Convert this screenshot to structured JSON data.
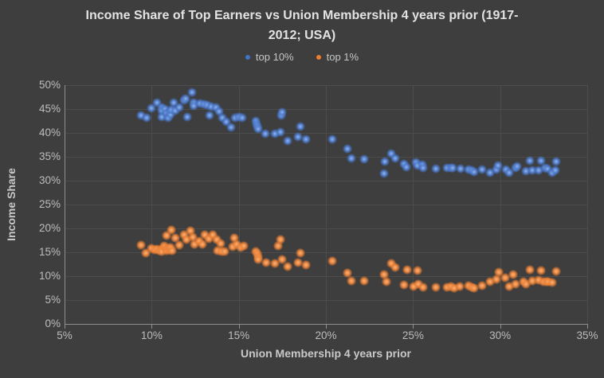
{
  "title": {
    "lines": [
      "Income Share of Top Earners vs Union Membership 4 years prior (1917-",
      "2012; USA)"
    ]
  },
  "legend": {
    "items": [
      {
        "label": "top 10%",
        "color": "#4472c4"
      },
      {
        "label": "top 1%",
        "color": "#ed7d31"
      }
    ]
  },
  "axes": {
    "x": {
      "title": "Union Membership 4 years prior",
      "min": 5,
      "max": 35,
      "tick_values": [
        5,
        10,
        15,
        20,
        25,
        30,
        35
      ],
      "ticks": [
        "5%",
        "10%",
        "15%",
        "20%",
        "25%",
        "30%",
        "35%"
      ]
    },
    "y": {
      "title": "Income Share",
      "min": 0,
      "max": 50,
      "tick_values": [
        0,
        5,
        10,
        15,
        20,
        25,
        30,
        35,
        40,
        45,
        50
      ],
      "ticks": [
        "0%",
        "5%",
        "10%",
        "15%",
        "20%",
        "25%",
        "30%",
        "35%",
        "40%",
        "45%",
        "50%"
      ]
    }
  },
  "chart_data": {
    "type": "scatter",
    "title": "Income Share of Top Earners vs Union Membership 4 years prior (1917-2012; USA)",
    "xlabel": "Union Membership 4 years prior",
    "ylabel": "Income Share",
    "xlim": [
      5,
      35
    ],
    "ylim": [
      0,
      50
    ],
    "x_unit": "%",
    "y_unit": "%",
    "grid": true,
    "legend_position": "top",
    "series": [
      {
        "name": "top 10%",
        "color": "#4472c4",
        "points": [
          [
            9.4,
            43.6
          ],
          [
            9.7,
            43.1
          ],
          [
            10.0,
            45.2
          ],
          [
            10.32,
            46.4
          ],
          [
            10.56,
            45.4
          ],
          [
            10.6,
            44.6
          ],
          [
            10.56,
            43.4
          ],
          [
            10.78,
            45.0
          ],
          [
            10.85,
            44.1
          ],
          [
            10.93,
            43.2
          ],
          [
            11.02,
            44.3
          ],
          [
            11.08,
            43.8
          ],
          [
            11.14,
            44.9
          ],
          [
            11.28,
            46.4
          ],
          [
            11.36,
            44.6
          ],
          [
            11.58,
            45.3
          ],
          [
            11.86,
            46.9
          ],
          [
            11.94,
            47.2
          ],
          [
            12.04,
            43.3
          ],
          [
            12.32,
            48.5
          ],
          [
            12.39,
            46.3
          ],
          [
            12.42,
            45.6
          ],
          [
            12.76,
            46.2
          ],
          [
            13.0,
            46.0
          ],
          [
            13.2,
            45.8
          ],
          [
            13.31,
            43.6
          ],
          [
            13.4,
            45.5
          ],
          [
            13.7,
            45.4
          ],
          [
            13.87,
            44.5
          ],
          [
            14.07,
            43.1
          ],
          [
            14.28,
            42.3
          ],
          [
            14.56,
            41.2
          ],
          [
            14.79,
            43.1
          ],
          [
            15.01,
            43.4
          ],
          [
            15.21,
            43.1
          ],
          [
            15.96,
            42.5
          ],
          [
            16.03,
            41.9
          ],
          [
            16.08,
            41.3
          ],
          [
            16.13,
            40.9
          ],
          [
            16.54,
            39.9
          ],
          [
            17.07,
            39.8
          ],
          [
            17.4,
            40.1
          ],
          [
            17.42,
            43.7
          ],
          [
            17.5,
            44.4
          ],
          [
            17.79,
            38.4
          ],
          [
            18.4,
            39.1
          ],
          [
            18.52,
            41.3
          ],
          [
            18.87,
            38.6
          ],
          [
            20.35,
            38.7
          ],
          [
            21.23,
            36.6
          ],
          [
            21.46,
            34.6
          ],
          [
            22.2,
            34.5
          ],
          [
            23.35,
            31.5
          ],
          [
            23.4,
            34.0
          ],
          [
            23.75,
            35.6
          ],
          [
            24.0,
            34.7
          ],
          [
            24.5,
            33.5
          ],
          [
            24.62,
            32.8
          ],
          [
            25.15,
            33.8
          ],
          [
            25.26,
            33.1
          ],
          [
            25.54,
            33.3
          ],
          [
            25.58,
            32.6
          ],
          [
            26.32,
            32.5
          ],
          [
            26.95,
            32.6
          ],
          [
            27.17,
            32.7
          ],
          [
            27.29,
            32.6
          ],
          [
            27.72,
            32.5
          ],
          [
            28.2,
            32.3
          ],
          [
            28.35,
            32.1
          ],
          [
            28.5,
            31.8
          ],
          [
            28.97,
            32.3
          ],
          [
            29.42,
            31.6
          ],
          [
            29.78,
            32.4
          ],
          [
            29.88,
            33.1
          ],
          [
            30.34,
            32.4
          ],
          [
            30.53,
            31.7
          ],
          [
            30.87,
            32.6
          ],
          [
            30.99,
            33.0
          ],
          [
            31.48,
            32.0
          ],
          [
            31.72,
            34.1
          ],
          [
            31.86,
            32.1
          ],
          [
            32.21,
            32.1
          ],
          [
            32.35,
            34.1
          ],
          [
            32.58,
            32.6
          ],
          [
            32.73,
            32.5
          ],
          [
            32.97,
            31.6
          ],
          [
            33.16,
            32.1
          ],
          [
            33.2,
            34.0
          ]
        ]
      },
      {
        "name": "top 1%",
        "color": "#ed7d31",
        "points": [
          [
            9.4,
            16.5
          ],
          [
            9.68,
            14.9
          ],
          [
            9.98,
            15.8
          ],
          [
            10.18,
            15.5
          ],
          [
            10.32,
            15.6
          ],
          [
            10.44,
            15.3
          ],
          [
            10.56,
            15.7
          ],
          [
            10.6,
            15.2
          ],
          [
            10.7,
            16.3
          ],
          [
            10.8,
            15.8
          ],
          [
            10.85,
            15.3
          ],
          [
            10.87,
            18.5
          ],
          [
            10.93,
            15.8
          ],
          [
            11.02,
            15.5
          ],
          [
            11.1,
            16.0
          ],
          [
            11.15,
            19.7
          ],
          [
            11.17,
            15.3
          ],
          [
            11.36,
            18.0
          ],
          [
            11.6,
            16.5
          ],
          [
            11.86,
            18.7
          ],
          [
            12.0,
            17.7
          ],
          [
            12.23,
            19.5
          ],
          [
            12.38,
            18.1
          ],
          [
            12.47,
            16.6
          ],
          [
            12.73,
            17.4
          ],
          [
            12.91,
            16.7
          ],
          [
            13.06,
            18.6
          ],
          [
            13.26,
            17.8
          ],
          [
            13.52,
            18.6
          ],
          [
            13.75,
            17.7
          ],
          [
            13.8,
            15.3
          ],
          [
            13.95,
            16.8
          ],
          [
            14.02,
            15.1
          ],
          [
            14.21,
            15.1
          ],
          [
            14.63,
            16.2
          ],
          [
            14.74,
            18.0
          ],
          [
            14.86,
            16.7
          ],
          [
            15.09,
            16.0
          ],
          [
            15.27,
            16.3
          ],
          [
            15.96,
            15.2
          ],
          [
            16.08,
            14.6
          ],
          [
            16.11,
            14.0
          ],
          [
            16.13,
            13.5
          ],
          [
            16.59,
            12.8
          ],
          [
            17.07,
            12.7
          ],
          [
            17.27,
            16.3
          ],
          [
            17.38,
            17.6
          ],
          [
            17.5,
            13.5
          ],
          [
            17.79,
            12.0
          ],
          [
            18.4,
            12.9
          ],
          [
            18.52,
            14.9
          ],
          [
            18.87,
            12.4
          ],
          [
            20.35,
            13.1
          ],
          [
            21.23,
            10.7
          ],
          [
            21.46,
            9.0
          ],
          [
            22.2,
            9.0
          ],
          [
            23.35,
            10.3
          ],
          [
            23.48,
            8.8
          ],
          [
            23.75,
            12.7
          ],
          [
            24.0,
            11.8
          ],
          [
            24.5,
            8.2
          ],
          [
            24.65,
            11.3
          ],
          [
            25.04,
            7.9
          ],
          [
            25.26,
            11.2
          ],
          [
            25.3,
            8.4
          ],
          [
            25.58,
            7.7
          ],
          [
            26.3,
            7.7
          ],
          [
            26.95,
            7.7
          ],
          [
            27.2,
            7.8
          ],
          [
            27.35,
            7.5
          ],
          [
            27.7,
            7.9
          ],
          [
            28.2,
            8.0
          ],
          [
            28.35,
            7.7
          ],
          [
            28.5,
            7.5
          ],
          [
            28.97,
            8.0
          ],
          [
            29.42,
            8.9
          ],
          [
            29.78,
            9.3
          ],
          [
            29.93,
            10.9
          ],
          [
            30.27,
            9.6
          ],
          [
            30.53,
            7.8
          ],
          [
            30.76,
            10.4
          ],
          [
            30.87,
            8.4
          ],
          [
            31.36,
            8.9
          ],
          [
            31.48,
            8.4
          ],
          [
            31.72,
            11.4
          ],
          [
            31.86,
            9.0
          ],
          [
            32.21,
            9.2
          ],
          [
            32.35,
            11.1
          ],
          [
            32.48,
            8.9
          ],
          [
            32.67,
            8.9
          ],
          [
            32.77,
            8.9
          ],
          [
            32.97,
            8.6
          ],
          [
            33.2,
            11.0
          ]
        ]
      }
    ]
  }
}
